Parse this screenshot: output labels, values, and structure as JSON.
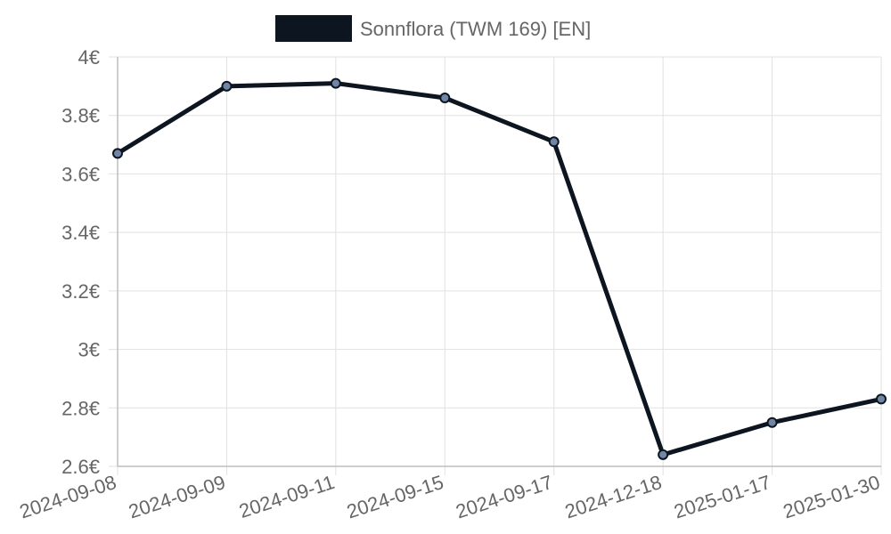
{
  "chart_data": {
    "type": "line",
    "categories": [
      "2024-09-08",
      "2024-09-09",
      "2024-09-11",
      "2024-09-15",
      "2024-09-17",
      "2024-12-18",
      "2025-01-17",
      "2025-01-30"
    ],
    "series": [
      {
        "name": "Sonnflora (TWM 169) [EN]",
        "values": [
          3.67,
          3.9,
          3.91,
          3.86,
          3.71,
          2.64,
          2.75,
          2.83
        ]
      }
    ],
    "ylim": [
      2.6,
      4.0
    ],
    "yticks": [
      "2.6€",
      "2.8€",
      "3€",
      "3.2€",
      "3.4€",
      "3.6€",
      "3.8€",
      "4€"
    ],
    "title": "",
    "xlabel": "",
    "ylabel": "",
    "grid": true,
    "legend_position": "top",
    "colors": {
      "line": "#0d1520",
      "point_fill": "#6f86a6",
      "grid": "#e1e1e1",
      "axis": "#bdbdbd",
      "text": "#666666"
    }
  }
}
